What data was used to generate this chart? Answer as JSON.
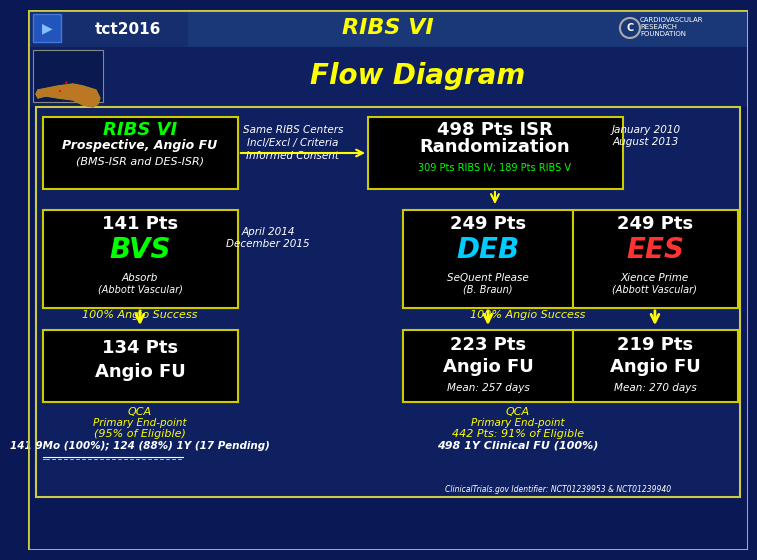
{
  "bg_dark": "#0a1855",
  "bg_header": "#1a3a7a",
  "bg_main_area": "#1a2d6a",
  "bg_box": "#000000",
  "title": "RIBS VI",
  "subtitle": "Flow Diagram",
  "title_color": "#ffff00",
  "subtitle_color": "#ffff00",
  "box1_line1": "RIBS VI",
  "box1_line2": "Prospective, Angio FU",
  "box1_line3": "(BMS-ISR and DES-ISR)",
  "box2_line1": "Same RIBS Centers",
  "box2_line2": "Incl/Excl / Criteria",
  "box2_line3": "Informed Consent",
  "box3_line1": "498 Pts ISR",
  "box3_line2": "Randomization",
  "box3_line3": "309 Pts RIBS IV; 189 Pts RIBS V",
  "box3_date1": "January 2010",
  "box3_date2": "August 2013",
  "bvs_pts": "141 Pts",
  "bvs_label": "BVS",
  "bvs_sub1": "Absorb",
  "bvs_sub2": "(Abbott Vascular)",
  "bvs_date1": "April 2014",
  "bvs_date2": "December 2015",
  "deb_pts": "249 Pts",
  "deb_label": "DEB",
  "deb_sub1": "SeQuent Please",
  "deb_sub2": "(B. Braun)",
  "ees_pts": "249 Pts",
  "ees_label": "EES",
  "ees_sub1": "Xience Prime",
  "ees_sub2": "(Abbott Vascular)",
  "success1": "100% Angio Success",
  "success2": "100% Angio Success",
  "angio_bvs_1": "134 Pts",
  "angio_bvs_2": "Angio FU",
  "angio_deb_1": "223 Pts",
  "angio_deb_2": "Angio FU",
  "angio_deb_mean": "Mean: 257 days",
  "angio_ees_1": "219 Pts",
  "angio_ees_2": "Angio FU",
  "angio_ees_mean": "Mean: 270 days",
  "qca1_title": "QCA",
  "qca1_sub1": "Primary End-point",
  "qca1_sub2": "(95% of Eligible)",
  "qca1_result": "141 9Mo (100%); 124 (88%) 1Y (17 Pending)",
  "qca2_title": "QCA",
  "qca2_sub1": "Primary End-point",
  "qca2_sub2": "442 Pts: 91% of Eligible",
  "qca2_result": "498 1Y Clinical FU (100%)",
  "clintrials": "ClinicalTrials.gov Identifier: NCT01239953 & NCT01239940",
  "arrow_color": "#ffff00",
  "green_color": "#00ff00",
  "cyan_color": "#00ccff",
  "red_color": "#ff3333",
  "white_color": "#ffffff",
  "yellow_color": "#ffff00",
  "box_border": "#cccc00",
  "outer_border": "#cccc44",
  "tct_blue": "#2255cc"
}
